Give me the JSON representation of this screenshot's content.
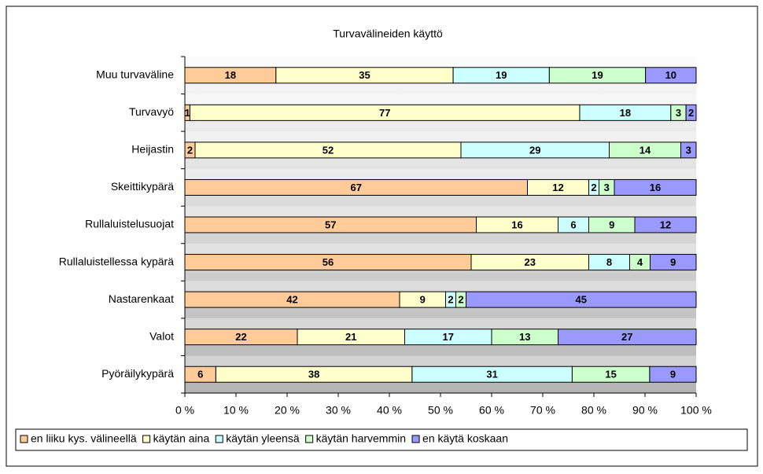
{
  "chart_data": {
    "type": "bar",
    "orientation": "horizontal",
    "stacked": "percent",
    "title": "Turvavälineiden käyttö",
    "categories": [
      "Muu turvaväline",
      "Turvavyö",
      "Heijastin",
      "Skeittikypärä",
      "Rullaluistelusuojat",
      "Rullaluistellessa kypärä",
      "Nastarenkaat",
      "Valot",
      "Pyöräilykypärä"
    ],
    "series": [
      {
        "name": "en liiku kys. välineellä",
        "color": "#ffcc99",
        "values": [
          18,
          1,
          2,
          67,
          57,
          56,
          42,
          22,
          6
        ]
      },
      {
        "name": "käytän aina",
        "color": "#ffffcc",
        "values": [
          35,
          77,
          52,
          12,
          16,
          23,
          9,
          21,
          38
        ]
      },
      {
        "name": "käytän yleensä",
        "color": "#ccffff",
        "values": [
          19,
          18,
          29,
          2,
          6,
          8,
          2,
          17,
          31
        ]
      },
      {
        "name": "käytän harvemmin",
        "color": "#ccffcc",
        "values": [
          19,
          3,
          14,
          3,
          9,
          4,
          2,
          13,
          15
        ]
      },
      {
        "name": "en käytä koskaan",
        "color": "#9999ff",
        "values": [
          10,
          2,
          3,
          16,
          12,
          9,
          45,
          27,
          9
        ]
      }
    ],
    "xlim": [
      0,
      100
    ],
    "xticks": [
      {
        "value": 0,
        "label": "0 %"
      },
      {
        "value": 10,
        "label": "10 %"
      },
      {
        "value": 20,
        "label": "20 %"
      },
      {
        "value": 30,
        "label": "30 %"
      },
      {
        "value": 40,
        "label": "40 %"
      },
      {
        "value": 50,
        "label": "50 %"
      },
      {
        "value": 60,
        "label": "60 %"
      },
      {
        "value": 70,
        "label": "70 %"
      },
      {
        "value": 80,
        "label": "80 %"
      },
      {
        "value": 90,
        "label": "90 %"
      },
      {
        "value": 100,
        "label": "100 %"
      }
    ],
    "legend": "bottom"
  }
}
